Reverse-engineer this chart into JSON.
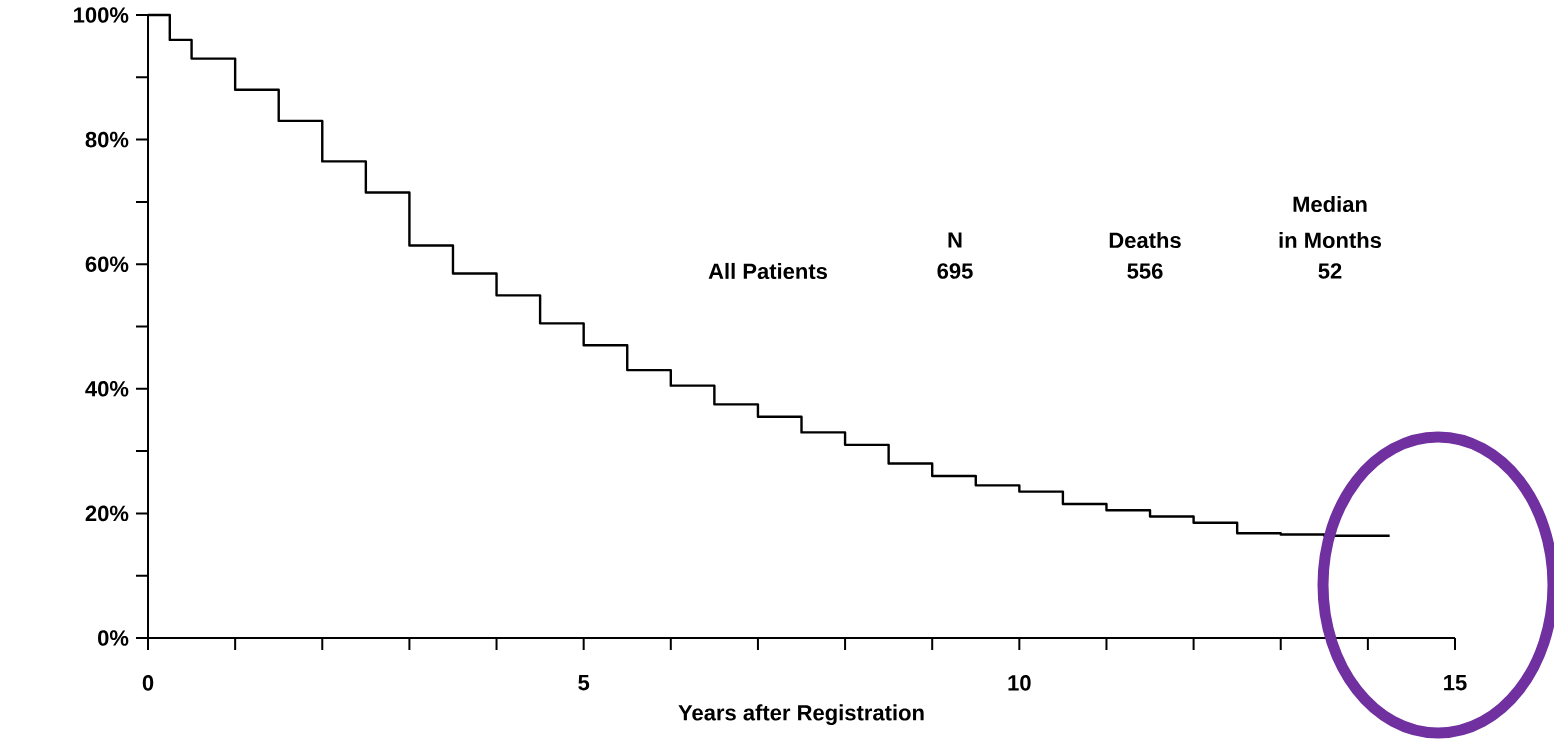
{
  "chart_data": {
    "type": "step",
    "xlabel": "Years after Registration",
    "x": [
      0,
      0.25,
      0.5,
      1,
      1.5,
      2,
      2.5,
      3,
      3.5,
      4,
      4.5,
      5,
      5.5,
      6,
      6.5,
      7,
      7.5,
      8,
      8.5,
      9,
      9.5,
      10,
      10.5,
      11,
      11.5,
      12,
      12.5,
      13,
      13.5,
      14,
      14.25
    ],
    "series": [
      {
        "color": "#000000",
        "values": [
          100,
          96,
          93,
          88,
          83,
          76.5,
          71.5,
          63,
          58.5,
          55,
          50.5,
          47,
          43,
          40.5,
          37.5,
          35.5,
          33,
          31,
          28,
          26,
          24.5,
          23.5,
          21.5,
          20.5,
          19.5,
          18.5,
          16.8,
          16.6,
          16.4,
          16.4,
          16.4
        ]
      }
    ],
    "xlim": [
      0,
      15
    ],
    "ylim": [
      0,
      100
    ],
    "xticks": [
      0,
      {
        "value": 1,
        "label": null
      },
      {
        "value": 2,
        "label": null
      },
      {
        "value": 3,
        "label": null
      },
      {
        "value": 4,
        "label": null
      },
      5,
      {
        "value": 6,
        "label": null
      },
      {
        "value": 7,
        "label": null
      },
      {
        "value": 8,
        "label": null
      },
      {
        "value": 9,
        "label": null
      },
      10,
      {
        "value": 11,
        "label": null
      },
      {
        "value": 12,
        "label": null
      },
      {
        "value": 13,
        "label": null
      },
      {
        "value": 14,
        "label": null
      },
      15
    ],
    "yticks": [
      {
        "value": 0,
        "label": "0%"
      },
      {
        "value": 10,
        "label": null
      },
      {
        "value": 20,
        "label": "20%"
      },
      {
        "value": 30,
        "label": null
      },
      {
        "value": 40,
        "label": "40%"
      },
      {
        "value": 50,
        "label": null
      },
      {
        "value": 60,
        "label": "60%"
      },
      {
        "value": 70,
        "label": null
      },
      {
        "value": 80,
        "label": "80%"
      },
      {
        "value": 90,
        "label": null
      },
      {
        "value": 100,
        "label": "100%"
      }
    ],
    "annotations": [
      "Median",
      "in Months",
      "N",
      "Deaths",
      "All Patients",
      "695",
      "556",
      "52"
    ],
    "grid": false
  }
}
